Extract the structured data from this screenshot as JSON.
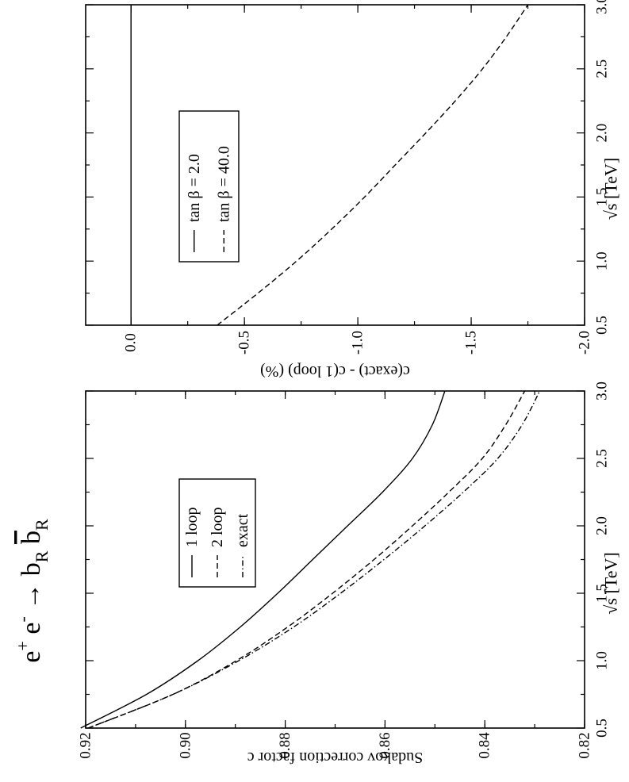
{
  "title": {
    "base": "e",
    "sup1": "+",
    "mid": " e",
    "sup2": "-",
    "arrow": " → b",
    "sub1": "R",
    "space": " ",
    "bbar": "b",
    "sub2": "R"
  },
  "chart_data": [
    {
      "id": "bottom",
      "type": "line",
      "orientation": "rotated-90-cw",
      "xlabel": "√s  [TeV]",
      "ylabel": "Sudakov correction factor c",
      "xlim": [
        0.5,
        3.0
      ],
      "ylim": [
        0.82,
        0.92
      ],
      "x_ticks": [
        "0.5",
        "1.0",
        "1.5",
        "2.0",
        "2.5",
        "3.0"
      ],
      "y_ticks": [
        "0.82",
        "0.84",
        "0.86",
        "0.88",
        "0.90",
        "0.92"
      ],
      "grid": false,
      "legend_placement": "upper-center",
      "series": [
        {
          "name": "1 loop",
          "style": "solid",
          "x": [
            0.5,
            0.75,
            1.0,
            1.25,
            1.5,
            1.75,
            2.0,
            2.25,
            2.5,
            2.75,
            3.0
          ],
          "y": [
            0.921,
            0.9078,
            0.8975,
            0.889,
            0.8815,
            0.8745,
            0.8675,
            0.8605,
            0.8545,
            0.8505,
            0.848
          ]
        },
        {
          "name": "2 loop",
          "style": "dashed",
          "x": [
            0.5,
            0.75,
            1.0,
            1.25,
            1.5,
            1.75,
            2.0,
            2.25,
            2.5,
            2.75,
            3.0
          ],
          "y": [
            0.9195,
            0.9025,
            0.8898,
            0.8795,
            0.8705,
            0.8622,
            0.8545,
            0.8472,
            0.8405,
            0.8358,
            0.832
          ]
        },
        {
          "name": "exact",
          "style": "dashdot",
          "x": [
            0.5,
            0.75,
            1.0,
            1.25,
            1.5,
            1.75,
            2.0,
            2.25,
            2.5,
            2.75,
            3.0
          ],
          "y": [
            0.9195,
            0.9025,
            0.8893,
            0.8783,
            0.8689,
            0.8602,
            0.852,
            0.8443,
            0.8374,
            0.8325,
            0.829
          ]
        }
      ]
    },
    {
      "id": "top",
      "type": "line",
      "orientation": "rotated-90-cw",
      "xlabel": "√s  [TeV]",
      "ylabel": "c(exact) - c(1 loop) (%)",
      "xlim": [
        0.5,
        3.0
      ],
      "ylim": [
        -2.0,
        0.2
      ],
      "x_ticks": [
        "0.5",
        "1.0",
        "1.5",
        "2.0",
        "2.5",
        "3.0"
      ],
      "y_ticks": [
        "0.0",
        "-0.5",
        "-1.0",
        "-1.5",
        "-2.0"
      ],
      "grid": false,
      "legend_placement": "upper-center",
      "series": [
        {
          "name": "tan β = 2.0",
          "style": "solid",
          "x": [
            0.5,
            3.0
          ],
          "y": [
            0.0,
            0.0
          ]
        },
        {
          "name": "tan β = 40.0",
          "style": "dashed",
          "x": [
            0.5,
            0.75,
            1.0,
            1.25,
            1.5,
            1.75,
            2.0,
            2.25,
            2.5,
            2.75,
            3.0
          ],
          "y": [
            -0.38,
            -0.56,
            -0.73,
            -0.885,
            -1.03,
            -1.165,
            -1.3,
            -1.43,
            -1.55,
            -1.655,
            -1.75
          ]
        }
      ]
    }
  ]
}
